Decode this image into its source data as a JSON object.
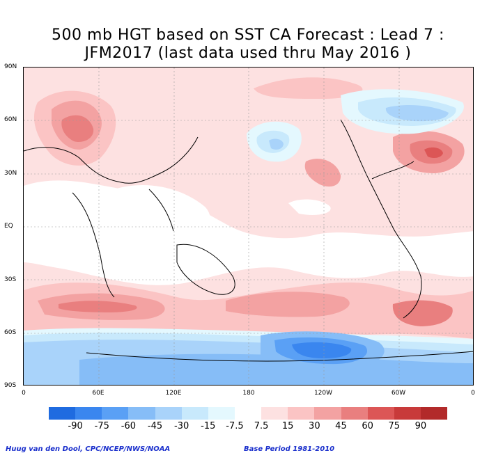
{
  "title": {
    "line1": "500 mb HGT based on SST CA Forecast : Lead 7 :",
    "line2": "JFM2017 (last data used thru May 2016 )"
  },
  "axes": {
    "lat_labels": [
      "90N",
      "60N",
      "30N",
      "EQ",
      "30S",
      "60S",
      "90S"
    ],
    "lon_labels": [
      "0",
      "60E",
      "120E",
      "180",
      "120W",
      "60W",
      "0"
    ]
  },
  "legend": {
    "colors": [
      "#1f6be0",
      "#3a86ef",
      "#5aa0f5",
      "#86bdf7",
      "#a9d3fa",
      "#c8e9fc",
      "#e4f8fe",
      "#ffffff",
      "#fde1e1",
      "#fbc4c4",
      "#f3a2a2",
      "#e97f7f",
      "#dc5656",
      "#c83a3a",
      "#b22a2a"
    ],
    "labels": [
      "-90",
      "-75",
      "-60",
      "-45",
      "-30",
      "-15",
      "-7.5",
      "7.5",
      "15",
      "30",
      "45",
      "60",
      "75",
      "90"
    ]
  },
  "footer": {
    "left": "Huug van den Dool, CPC/NCEP/NWS/NOAA",
    "right": "Base Period 1981-2010"
  }
}
